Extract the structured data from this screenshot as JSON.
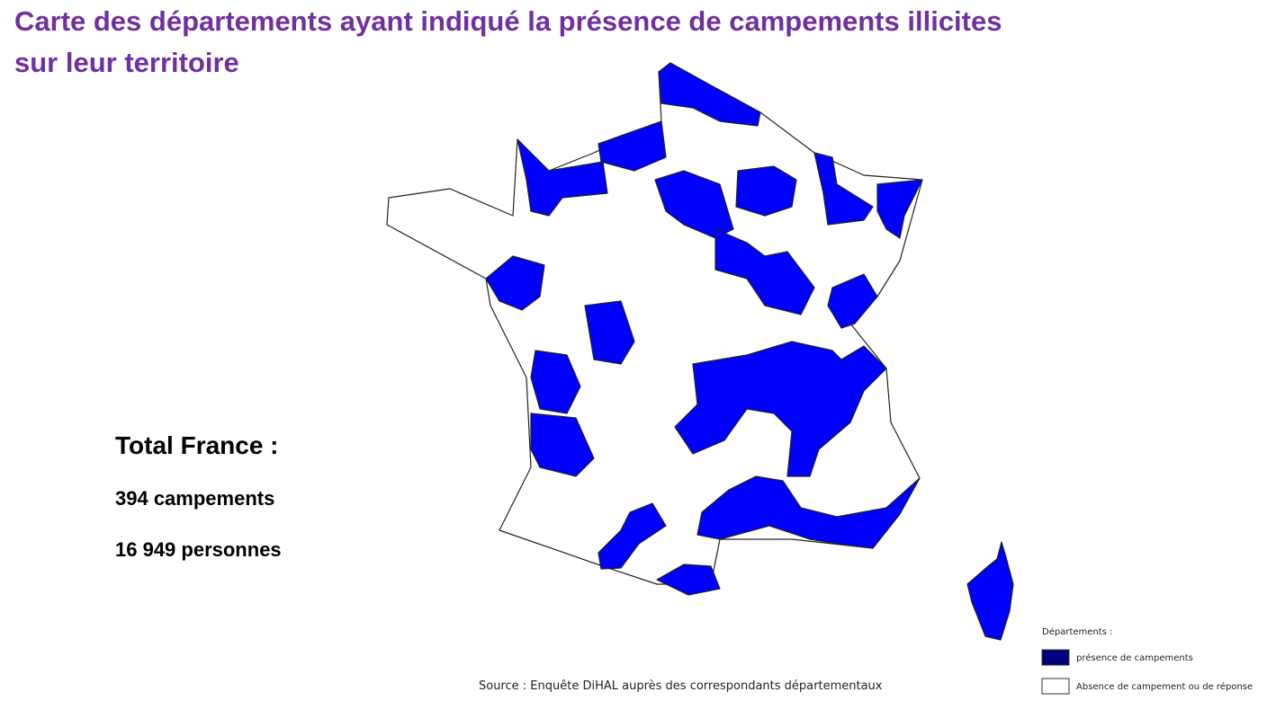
{
  "title_lines": [
    "Carte des départements ayant indiqué la présence de campements illicites",
    "sur leur territoire"
  ],
  "totals": {
    "heading": "Total France :",
    "camps": "394 campements",
    "people": "16 949 personnes"
  },
  "legend": {
    "title": "Départements :",
    "items": [
      {
        "label": "présence de campements",
        "color": "#00007f"
      },
      {
        "label": "Absence de campement ou de réponse",
        "color": "#ffffff"
      }
    ]
  },
  "source": "Source : Enquête DiHAL auprès des correspondants départementaux"
}
